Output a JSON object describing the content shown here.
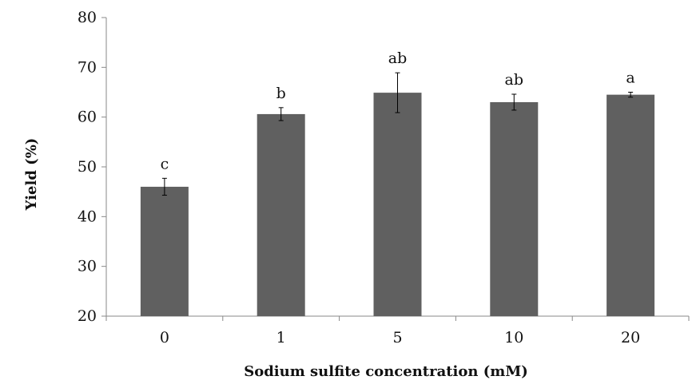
{
  "chart_data": {
    "type": "bar",
    "title": "",
    "xlabel": "Sodium sulfite concentration (mM)",
    "ylabel": "Yield (%)",
    "categories": [
      "0",
      "1",
      "5",
      "10",
      "20"
    ],
    "series": [
      {
        "values": [
          46.0,
          60.6,
          64.9,
          63.0,
          64.5
        ],
        "error": [
          1.7,
          1.3,
          4.0,
          1.6,
          0.5
        ],
        "significance_labels": [
          "c",
          "b",
          "ab",
          "ab",
          "a"
        ]
      }
    ],
    "ylim": [
      20,
      80
    ],
    "yticks": [
      20,
      30,
      40,
      50,
      60,
      70,
      80
    ],
    "grid": false,
    "legend": "none",
    "bar_color": "#606060",
    "axis_color": "#888888"
  }
}
